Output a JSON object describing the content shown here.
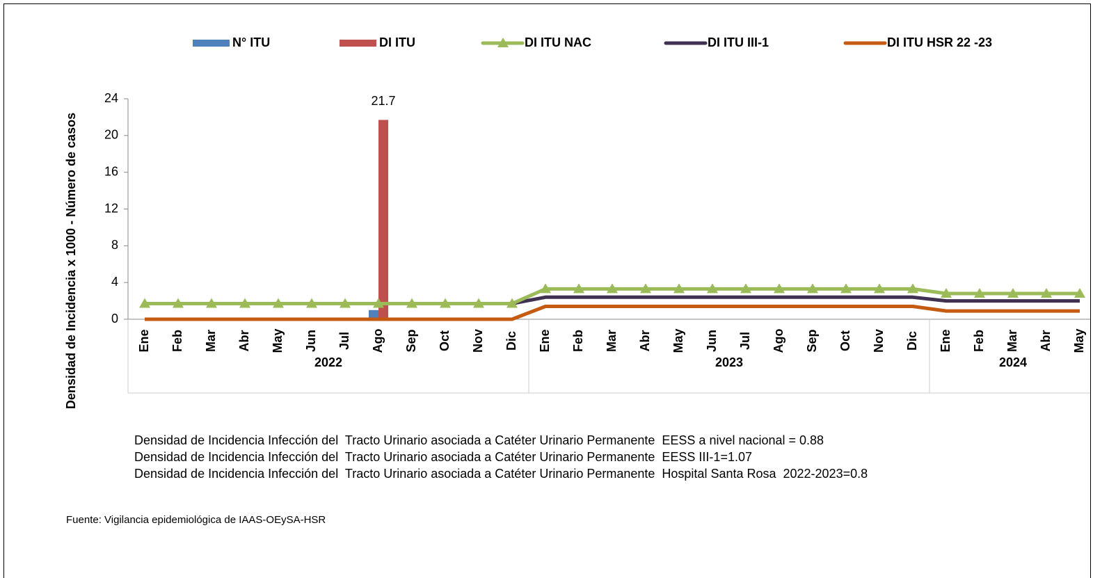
{
  "chart_data": {
    "type": "bar",
    "y_label": "Densidad de Incidencia x 1000 - Número de casos",
    "categories": [
      "Ene",
      "Feb",
      "Mar",
      "Abr",
      "May",
      "Jun",
      "Jul",
      "Ago",
      "Sep",
      "Oct",
      "Nov",
      "Dic",
      "Ene",
      "Feb",
      "Mar",
      "Abr",
      "May",
      "Jun",
      "Jul",
      "Ago",
      "Sep",
      "Oct",
      "Nov",
      "Dic",
      "Ene",
      "Feb",
      "Mar",
      "Abr",
      "May"
    ],
    "groups": [
      {
        "name": "2022",
        "count": 12
      },
      {
        "name": "2023",
        "count": 12
      },
      {
        "name": "2024",
        "count": 5
      }
    ],
    "series": [
      {
        "name": "N° ITU",
        "type": "bar",
        "color": "#4f81bd",
        "values": [
          0,
          0,
          0,
          0,
          0,
          0,
          0,
          1,
          0,
          0,
          0,
          0,
          0,
          0,
          0,
          0,
          0,
          0,
          0,
          0,
          0,
          0,
          0,
          0,
          0,
          0,
          0,
          0,
          0
        ]
      },
      {
        "name": "DI ITU",
        "type": "bar",
        "color": "#c0504d",
        "values": [
          0,
          0,
          0,
          0,
          0,
          0,
          0,
          21.7,
          0,
          0,
          0,
          0,
          0,
          0,
          0,
          0,
          0,
          0,
          0,
          0,
          0,
          0,
          0,
          0,
          0,
          0,
          0,
          0,
          0
        ],
        "value_labels": [
          null,
          null,
          null,
          null,
          null,
          null,
          null,
          "21.7",
          null,
          null,
          null,
          null,
          null,
          null,
          null,
          null,
          null,
          null,
          null,
          null,
          null,
          null,
          null,
          null,
          null,
          null,
          null,
          null,
          null
        ]
      },
      {
        "name": "DI ITU NAC",
        "type": "line",
        "marker": "triangle",
        "color": "#9bbb59",
        "values": [
          1.7,
          1.7,
          1.7,
          1.7,
          1.7,
          1.7,
          1.7,
          1.7,
          1.7,
          1.7,
          1.7,
          1.7,
          3.3,
          3.3,
          3.3,
          3.3,
          3.3,
          3.3,
          3.3,
          3.3,
          3.3,
          3.3,
          3.3,
          3.3,
          2.8,
          2.8,
          2.8,
          2.8,
          2.8
        ]
      },
      {
        "name": "DI ITU III-1",
        "type": "line",
        "color": "#403152",
        "values": [
          1.7,
          1.7,
          1.7,
          1.7,
          1.7,
          1.7,
          1.7,
          1.7,
          1.7,
          1.7,
          1.7,
          1.7,
          2.4,
          2.4,
          2.4,
          2.4,
          2.4,
          2.4,
          2.4,
          2.4,
          2.4,
          2.4,
          2.4,
          2.4,
          2.0,
          2.0,
          2.0,
          2.0,
          2.0
        ]
      },
      {
        "name": "DI ITU HSR 22 -23",
        "type": "line",
        "color": "#c55a11",
        "values": [
          0,
          0,
          0,
          0,
          0,
          0,
          0,
          0,
          0,
          0,
          0,
          0,
          1.4,
          1.4,
          1.4,
          1.4,
          1.4,
          1.4,
          1.4,
          1.4,
          1.4,
          1.4,
          1.4,
          1.4,
          0.9,
          0.9,
          0.9,
          0.9,
          0.9
        ]
      }
    ],
    "ylim": [
      0,
      24
    ],
    "yticks": [
      0,
      4,
      8,
      12,
      16,
      20,
      24
    ],
    "grid": false,
    "legend": "top",
    "notes": [
      "Densidad de Incidencia Infección del  Tracto Urinario asociada a Catéter Urinario Permanente  EESS a nivel nacional = 0.88",
      "Densidad de Incidencia Infección del  Tracto Urinario asociada a Catéter Urinario Permanente  EESS III-1=1.07",
      "Densidad de Incidencia Infección del  Tracto Urinario asociada a Catéter Urinario Permanente  Hospital Santa Rosa  2022-2023=0.8"
    ],
    "source": "Fuente: Vigilancia epidemiológica de IAAS-OEySA-HSR"
  }
}
